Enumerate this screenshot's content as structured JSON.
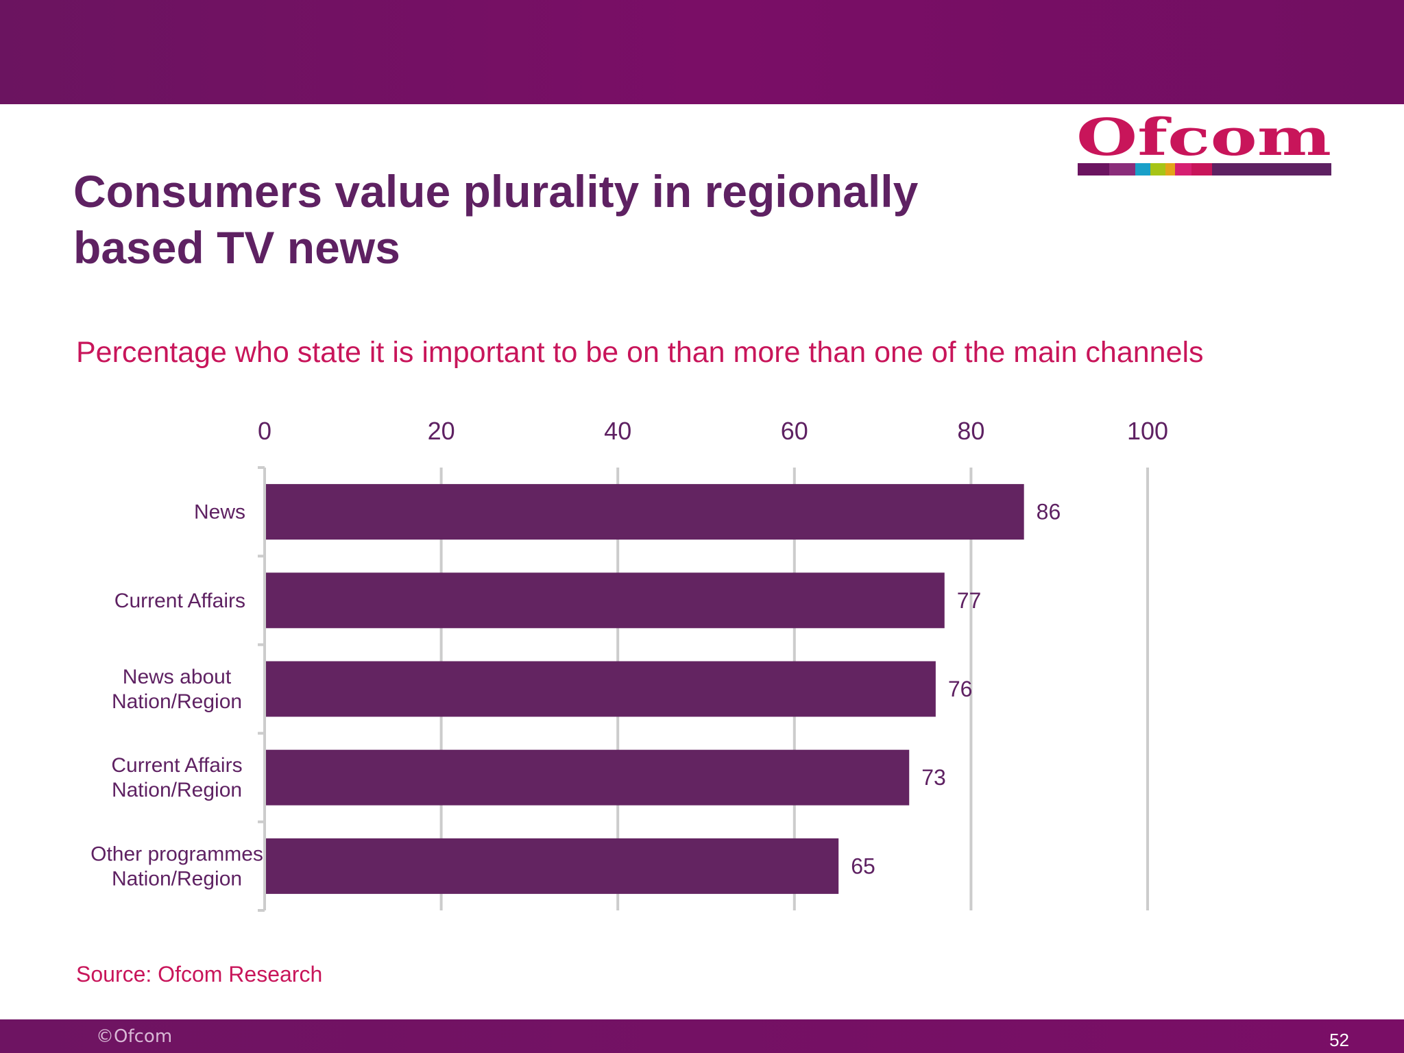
{
  "header": {
    "title_line1": "Consumers value plurality in regionally",
    "title_line2": "based TV news",
    "logo_text": "Ofcom"
  },
  "subtitle": "Percentage who state it is important to be on than more than one of the main channels",
  "source": "Source: Ofcom Research",
  "footer": {
    "copyright": "©Ofcom",
    "page_number": "52"
  },
  "colors": {
    "band": "#760f65",
    "title": "#5e2162",
    "accent": "#c8155a",
    "bar": "#632461",
    "gridline": "#cccccc"
  },
  "chart_data": {
    "type": "bar",
    "orientation": "horizontal",
    "title": "Percentage who state it is important to be on than more than one of the main channels",
    "xlim": [
      0,
      100
    ],
    "xticks": [
      0,
      20,
      40,
      60,
      80,
      100
    ],
    "xaxis_position": "top",
    "categories": [
      [
        "News"
      ],
      [
        "Current Affairs"
      ],
      [
        "News about",
        "Nation/Region"
      ],
      [
        "Current Affairs",
        "Nation/Region"
      ],
      [
        "Other programmes",
        "Nation/Region"
      ]
    ],
    "values": [
      86,
      77,
      76,
      73,
      65
    ],
    "grid": true,
    "legend": "none"
  }
}
